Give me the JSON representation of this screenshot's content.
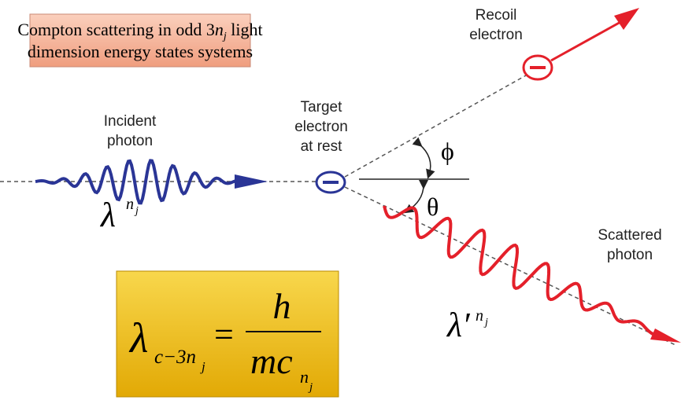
{
  "title": {
    "line1_start": "Compton scattering in odd 3",
    "line1_n": "n",
    "line1_j": "j",
    "line1_end": " light",
    "line2": "dimension energy states systems"
  },
  "labels": {
    "recoil": [
      "Recoil",
      "electron"
    ],
    "target": [
      "Target",
      "electron",
      "at rest"
    ],
    "incident": [
      "Incident",
      "photon"
    ],
    "scattered": [
      "Scattered",
      "photon"
    ],
    "phi": "ϕ",
    "theta": "θ"
  },
  "wavelengths": {
    "incident": {
      "symbol": "λ",
      "sup": "n",
      "sub": "j"
    },
    "scattered": {
      "symbol": "λ′",
      "sup": "n",
      "sub": "j"
    }
  },
  "formula": {
    "lhs": "λ",
    "lhs_sub": "c−3n",
    "lhs_subsub": "j",
    "equals": "=",
    "numerator": "h",
    "denominator": "mc",
    "den_sub": "n",
    "den_subsub": "j"
  }
}
